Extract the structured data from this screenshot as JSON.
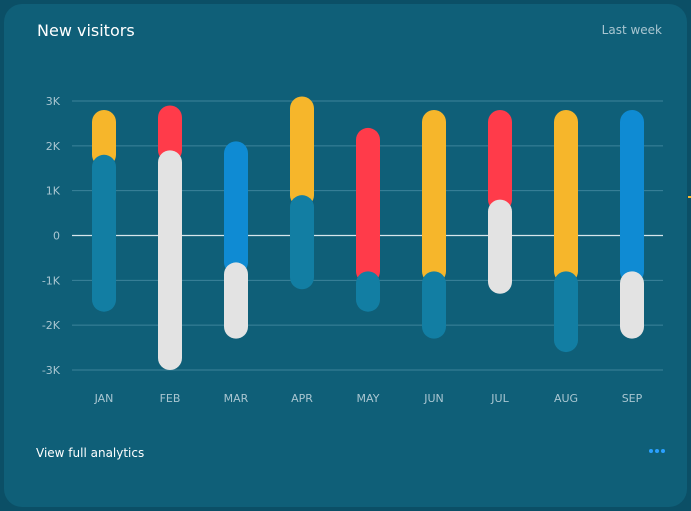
{
  "header": {
    "title": "New visitors",
    "period": "Last week"
  },
  "footer": {
    "link_label": "View full analytics",
    "more_icon": "more-dots-icon"
  },
  "colors": {
    "background": "#0f5f78",
    "grid": "#3c839a",
    "zero_line": "#d6e6ec",
    "label": "#a9c6d1",
    "yellow": "#f6b62b",
    "red": "#ff3b4a",
    "blue": "#0f8bd3",
    "teal": "#127ea3",
    "white": "#e3e3e3",
    "accent_dots": "#2aa0ff"
  },
  "chart_data": {
    "type": "bar",
    "title": "",
    "xlabel": "",
    "ylabel": "",
    "ylim": [
      -3000,
      3000
    ],
    "y_ticks": [
      3000,
      2000,
      1000,
      0,
      -1000,
      -2000,
      -3000
    ],
    "y_tick_labels": [
      "3K",
      "2K",
      "1K",
      "0",
      "-1K",
      "-2K",
      "-3K"
    ],
    "grid": true,
    "categories": [
      "JAN",
      "FEB",
      "MAR",
      "APR",
      "MAY",
      "JUN",
      "JUL",
      "AUG",
      "SEP"
    ],
    "bars": [
      {
        "category": "JAN",
        "top": {
          "from": 1800,
          "to": 2800,
          "color": "yellow"
        },
        "bottom": {
          "from": -1700,
          "to": 1800,
          "color": "teal"
        }
      },
      {
        "category": "FEB",
        "top": {
          "from": 1900,
          "to": 2900,
          "color": "red"
        },
        "bottom": {
          "from": -3000,
          "to": 1900,
          "color": "white"
        }
      },
      {
        "category": "MAR",
        "top": {
          "from": -600,
          "to": 2100,
          "color": "blue"
        },
        "bottom": {
          "from": -2300,
          "to": -600,
          "color": "white"
        }
      },
      {
        "category": "APR",
        "top": {
          "from": 900,
          "to": 3100,
          "color": "yellow"
        },
        "bottom": {
          "from": -1200,
          "to": 900,
          "color": "teal"
        }
      },
      {
        "category": "MAY",
        "top": {
          "from": -800,
          "to": 2400,
          "color": "red"
        },
        "bottom": {
          "from": -1700,
          "to": -800,
          "color": "teal"
        }
      },
      {
        "category": "JUN",
        "top": {
          "from": -800,
          "to": 2800,
          "color": "yellow"
        },
        "bottom": {
          "from": -2300,
          "to": -800,
          "color": "teal"
        }
      },
      {
        "category": "JUL",
        "top": {
          "from": 800,
          "to": 2800,
          "color": "red"
        },
        "bottom": {
          "from": -1300,
          "to": 800,
          "color": "white"
        }
      },
      {
        "category": "AUG",
        "top": {
          "from": -800,
          "to": 2800,
          "color": "yellow"
        },
        "bottom": {
          "from": -2600,
          "to": -800,
          "color": "teal"
        }
      },
      {
        "category": "SEP",
        "top": {
          "from": -800,
          "to": 2800,
          "color": "blue"
        },
        "bottom": {
          "from": -2300,
          "to": -800,
          "color": "white"
        }
      }
    ]
  }
}
